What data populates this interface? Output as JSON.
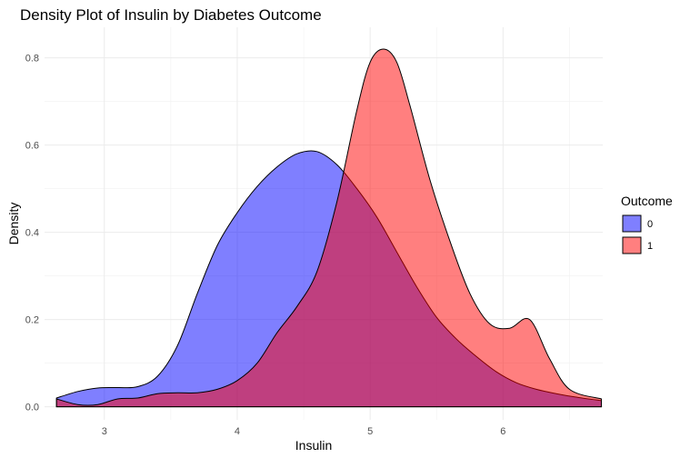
{
  "chart_data": {
    "type": "area",
    "title": "Density Plot of Insulin by Diabetes Outcome",
    "xlabel": "Insulin",
    "ylabel": "Density",
    "xlim": [
      2.55,
      6.75
    ],
    "ylim": [
      -0.03,
      0.87
    ],
    "x_ticks": [
      3,
      4,
      5,
      6
    ],
    "x_tick_labels": [
      "3",
      "4",
      "5",
      "6"
    ],
    "y_ticks": [
      0.0,
      0.2,
      0.4,
      0.6,
      0.8
    ],
    "y_tick_labels": [
      "0.0",
      "0.2",
      "0.4",
      "0.6",
      "0.8"
    ],
    "grid": true,
    "legend": {
      "title": "Outcome",
      "position": "right"
    },
    "series": [
      {
        "name": "0",
        "color": "#0000ff",
        "x": [
          2.64,
          2.8,
          2.95,
          3.1,
          3.25,
          3.4,
          3.55,
          3.7,
          3.85,
          4.0,
          4.15,
          4.3,
          4.45,
          4.6,
          4.75,
          4.9,
          5.05,
          5.2,
          5.35,
          5.5,
          5.65,
          5.8,
          5.95,
          6.1,
          6.25,
          6.4,
          6.55,
          6.74
        ],
        "y": [
          0.02,
          0.035,
          0.043,
          0.044,
          0.046,
          0.07,
          0.14,
          0.26,
          0.37,
          0.445,
          0.505,
          0.55,
          0.58,
          0.585,
          0.555,
          0.5,
          0.435,
          0.355,
          0.275,
          0.205,
          0.155,
          0.115,
          0.08,
          0.055,
          0.04,
          0.03,
          0.022,
          0.014
        ]
      },
      {
        "name": "1",
        "color": "#ff0000",
        "x": [
          2.64,
          2.8,
          2.95,
          3.1,
          3.25,
          3.4,
          3.55,
          3.7,
          3.85,
          4.0,
          4.15,
          4.3,
          4.45,
          4.6,
          4.75,
          4.9,
          5.0,
          5.1,
          5.2,
          5.3,
          5.45,
          5.6,
          5.75,
          5.9,
          6.05,
          6.2,
          6.35,
          6.5,
          6.74
        ],
        "y": [
          0.018,
          0.005,
          0.005,
          0.018,
          0.02,
          0.03,
          0.032,
          0.032,
          0.04,
          0.06,
          0.1,
          0.17,
          0.23,
          0.31,
          0.47,
          0.68,
          0.79,
          0.82,
          0.79,
          0.69,
          0.52,
          0.38,
          0.26,
          0.19,
          0.18,
          0.2,
          0.11,
          0.04,
          0.018
        ]
      }
    ]
  }
}
